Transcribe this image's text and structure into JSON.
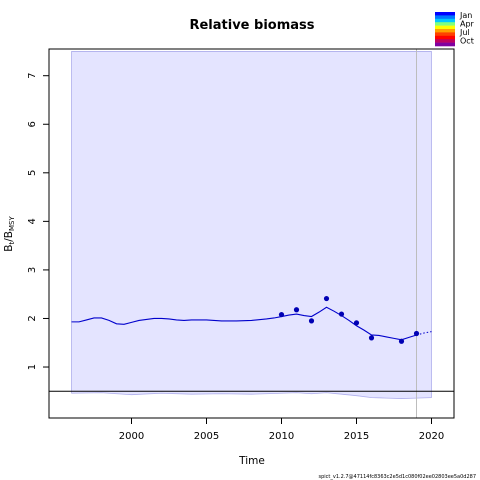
{
  "chart_data": {
    "type": "line",
    "title": "Relative biomass",
    "xlabel": "Time",
    "ylabel": "B_t/B_MSY",
    "ylabel_main": "B",
    "ylabel_sub1": "t",
    "ylabel_sep": "/B",
    "ylabel_sub2": "MSY",
    "xlim": [
      1994.5,
      2021.5
    ],
    "ylim": [
      -0.05,
      7.55
    ],
    "xticks": [
      2000,
      2005,
      2010,
      2015,
      2020
    ],
    "yticks": [
      1,
      2,
      3,
      4,
      5,
      6,
      7
    ],
    "grid": false,
    "reference_line": 0.5,
    "last_obs_vline": 2019,
    "ci_color": "#e4e4ff",
    "line_color": "#0000cc",
    "point_color": "#0000b4",
    "ci_upper": {
      "x": [
        1996,
        2020
      ],
      "y": [
        7.5,
        7.5
      ]
    },
    "ci_lower": {
      "x": [
        1996,
        1998,
        2000,
        2002,
        2004,
        2006,
        2008,
        2010,
        2011,
        2012,
        2013,
        2014,
        2015,
        2016,
        2017,
        2018,
        2019,
        2020
      ],
      "y": [
        0.46,
        0.47,
        0.43,
        0.46,
        0.44,
        0.45,
        0.44,
        0.46,
        0.47,
        0.45,
        0.47,
        0.44,
        0.41,
        0.37,
        0.36,
        0.35,
        0.36,
        0.37
      ]
    },
    "estimate": {
      "x": [
        1996,
        1996.5,
        1997,
        1997.5,
        1998,
        1998.5,
        1999,
        1999.5,
        2000,
        2000.5,
        2001,
        2001.5,
        2002,
        2002.5,
        2003,
        2003.5,
        2004,
        2005,
        2006,
        2007,
        2008,
        2009,
        2009.5,
        2010,
        2010.5,
        2011,
        2011.5,
        2012,
        2012.5,
        2013,
        2013.5,
        2014,
        2014.5,
        2015,
        2015.5,
        2016,
        2016.5,
        2017,
        2017.5,
        2018,
        2018.5,
        2019
      ],
      "y": [
        1.93,
        1.93,
        1.97,
        2.01,
        2.01,
        1.96,
        1.89,
        1.88,
        1.92,
        1.96,
        1.98,
        2.0,
        2.0,
        1.99,
        1.97,
        1.96,
        1.97,
        1.97,
        1.95,
        1.95,
        1.96,
        1.99,
        2.01,
        2.04,
        2.07,
        2.09,
        2.06,
        2.04,
        2.13,
        2.23,
        2.15,
        2.06,
        1.96,
        1.85,
        1.76,
        1.66,
        1.65,
        1.62,
        1.59,
        1.56,
        1.61,
        1.66
      ]
    },
    "forecast": {
      "x": [
        2019,
        2019.5,
        2020
      ],
      "y": [
        1.66,
        1.7,
        1.73
      ]
    },
    "observations": {
      "x": [
        2010,
        2011,
        2012,
        2013,
        2014,
        2015,
        2016,
        2018,
        2019
      ],
      "y": [
        2.08,
        2.18,
        1.95,
        2.41,
        2.09,
        1.91,
        1.6,
        1.53,
        1.69
      ]
    },
    "legend": {
      "placement": "top-right",
      "labels": [
        "Jan",
        "Apr",
        "Jul",
        "Oct"
      ],
      "colors": [
        "#0000ff",
        "#0078ff",
        "#00c8ff",
        "#80ff80",
        "#ffff00",
        "#ffa000",
        "#ff4000",
        "#ff0000",
        "#c00060",
        "#8000a0"
      ]
    },
    "footer": "spict_v1.2.7@47114fc8363c2e5d1c080f02ee02803ee5a0d287"
  }
}
